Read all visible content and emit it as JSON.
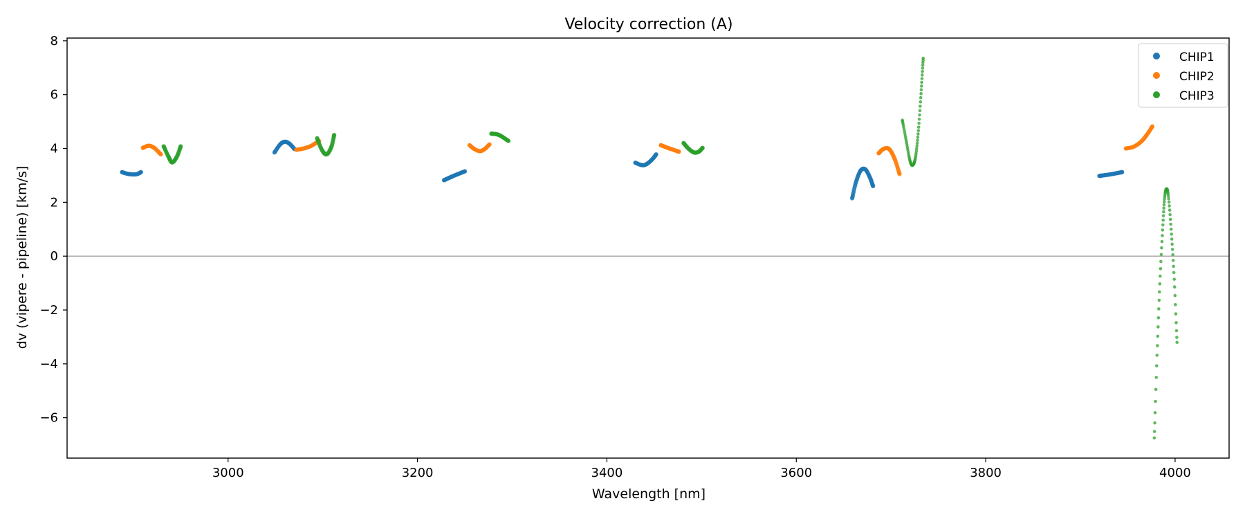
{
  "chart_data": {
    "type": "scatter",
    "title": "Velocity correction (A)",
    "xlabel": "Wavelength [nm]",
    "ylabel": "dv (vipere - pipeline) [km/s]",
    "xlim": [
      2830,
      4057
    ],
    "ylim": [
      -7.5,
      8.1
    ],
    "x_ticks": [
      3000,
      3200,
      3400,
      3600,
      3800,
      4000
    ],
    "y_ticks": [
      -6,
      -4,
      -2,
      0,
      2,
      4,
      6,
      8
    ],
    "y_tick_labels": [
      "−6",
      "−4",
      "−2",
      "0",
      "2",
      "4",
      "6",
      "8"
    ],
    "reference_line_y": 0,
    "legend_location": "top-right",
    "series": [
      {
        "name": "CHIP1",
        "color": "#1f77b4",
        "segments": [
          {
            "anchors": [
              [
                2888,
                3.12
              ],
              [
                2895,
                3.05
              ],
              [
                2903,
                3.04
              ],
              [
                2908,
                3.12
              ]
            ],
            "n": 26
          },
          {
            "anchors": [
              [
                3049,
                3.85
              ],
              [
                3055,
                4.15
              ],
              [
                3060,
                4.25
              ],
              [
                3065,
                4.17
              ],
              [
                3070,
                3.98
              ]
            ],
            "n": 28
          },
          {
            "anchors": [
              [
                3228,
                2.82
              ],
              [
                3238,
                2.98
              ],
              [
                3250,
                3.15
              ]
            ],
            "n": 30
          },
          {
            "anchors": [
              [
                3430,
                3.47
              ],
              [
                3437,
                3.38
              ],
              [
                3442,
                3.42
              ],
              [
                3448,
                3.6
              ],
              [
                3452,
                3.78
              ]
            ],
            "n": 28
          },
          {
            "anchors": [
              [
                3659,
                2.15
              ],
              [
                3663,
                2.75
              ],
              [
                3668,
                3.18
              ],
              [
                3673,
                3.22
              ],
              [
                3678,
                2.9
              ],
              [
                3681,
                2.6
              ]
            ],
            "n": 40
          },
          {
            "anchors": [
              [
                3920,
                2.98
              ],
              [
                3932,
                3.04
              ],
              [
                3944,
                3.12
              ]
            ],
            "n": 30
          }
        ]
      },
      {
        "name": "CHIP2",
        "color": "#ff7f0e",
        "segments": [
          {
            "anchors": [
              [
                2910,
                4.02
              ],
              [
                2916,
                4.1
              ],
              [
                2922,
                4.02
              ],
              [
                2929,
                3.78
              ]
            ],
            "n": 26
          },
          {
            "anchors": [
              [
                3072,
                3.95
              ],
              [
                3080,
                4.0
              ],
              [
                3088,
                4.1
              ],
              [
                3096,
                4.28
              ]
            ],
            "n": 28
          },
          {
            "anchors": [
              [
                3255,
                4.12
              ],
              [
                3260,
                3.98
              ],
              [
                3266,
                3.9
              ],
              [
                3271,
                3.98
              ],
              [
                3276,
                4.15
              ]
            ],
            "n": 26
          },
          {
            "anchors": [
              [
                3457,
                4.12
              ],
              [
                3466,
                4.0
              ],
              [
                3476,
                3.88
              ]
            ],
            "n": 28
          },
          {
            "anchors": [
              [
                3687,
                3.82
              ],
              [
                3692,
                3.98
              ],
              [
                3698,
                3.98
              ],
              [
                3704,
                3.6
              ],
              [
                3709,
                3.05
              ]
            ],
            "n": 36
          },
          {
            "anchors": [
              [
                3948,
                4.0
              ],
              [
                3956,
                4.06
              ],
              [
                3964,
                4.25
              ],
              [
                3970,
                4.5
              ],
              [
                3976,
                4.82
              ]
            ],
            "n": 32
          }
        ]
      },
      {
        "name": "CHIP3",
        "color": "#2ca02c",
        "segments": [
          {
            "anchors": [
              [
                2932,
                4.08
              ],
              [
                2937,
                3.7
              ],
              [
                2941,
                3.48
              ],
              [
                2946,
                3.7
              ],
              [
                2950,
                4.08
              ]
            ],
            "n": 30
          },
          {
            "anchors": [
              [
                3094,
                4.38
              ],
              [
                3099,
                3.95
              ],
              [
                3104,
                3.78
              ],
              [
                3109,
                4.05
              ],
              [
                3112,
                4.5
              ]
            ],
            "n": 30
          },
          {
            "anchors": [
              [
                3278,
                4.55
              ],
              [
                3286,
                4.5
              ],
              [
                3296,
                4.28
              ]
            ],
            "n": 26
          },
          {
            "anchors": [
              [
                3481,
                4.2
              ],
              [
                3486,
                4.0
              ],
              [
                3492,
                3.85
              ],
              [
                3497,
                3.88
              ],
              [
                3501,
                4.02
              ]
            ],
            "n": 28
          },
          {
            "anchors": [
              [
                3712,
                5.05
              ],
              [
                3716,
                4.3
              ],
              [
                3720,
                3.55
              ],
              [
                3723,
                3.38
              ],
              [
                3726,
                3.7
              ],
              [
                3729,
                4.7
              ],
              [
                3732,
                6.2
              ],
              [
                3734,
                7.35
              ]
            ],
            "n": 70,
            "small": true
          },
          {
            "anchors": [
              [
                3978,
                -6.75
              ],
              [
                3981,
                -3.6
              ],
              [
                3984,
                -0.9
              ],
              [
                3987,
                1.1
              ],
              [
                3989,
                2.2
              ],
              [
                3991,
                2.5
              ],
              [
                3993,
                2.2
              ],
              [
                3996,
                0.9
              ],
              [
                3999,
                -0.8
              ],
              [
                4002,
                -3.2
              ]
            ],
            "n": 75,
            "small": true
          }
        ]
      }
    ]
  }
}
